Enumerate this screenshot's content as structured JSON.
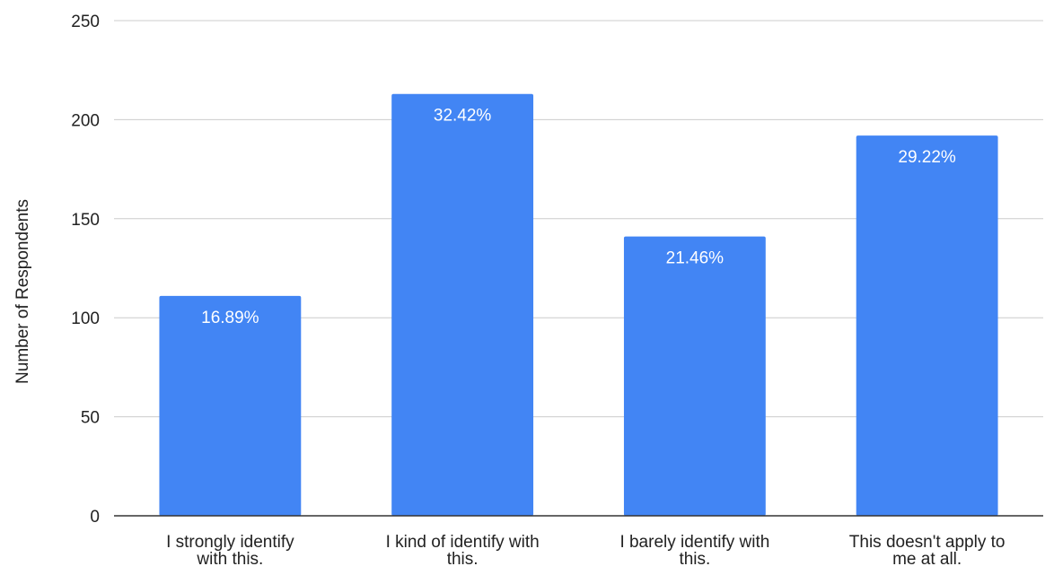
{
  "chart_data": {
    "type": "bar",
    "ylabel": "Number of Respondents",
    "ylim": [
      0,
      250
    ],
    "yticks": [
      0,
      50,
      100,
      150,
      200,
      250
    ],
    "grid": true,
    "categories": [
      [
        "I strongly identify",
        "with this."
      ],
      [
        "I kind of identify with",
        "this."
      ],
      [
        "I barely identify with",
        "this."
      ],
      [
        "This doesn't apply to",
        "me at all."
      ]
    ],
    "values": [
      111,
      213,
      141,
      192
    ],
    "data_labels": [
      "16.89%",
      "32.42%",
      "21.46%",
      "29.22%"
    ],
    "bar_color": "#4285f4",
    "label_color": "#ffffff",
    "text_color": "#222222",
    "grid_color": "#cccccc",
    "axis_color": "#333333"
  }
}
